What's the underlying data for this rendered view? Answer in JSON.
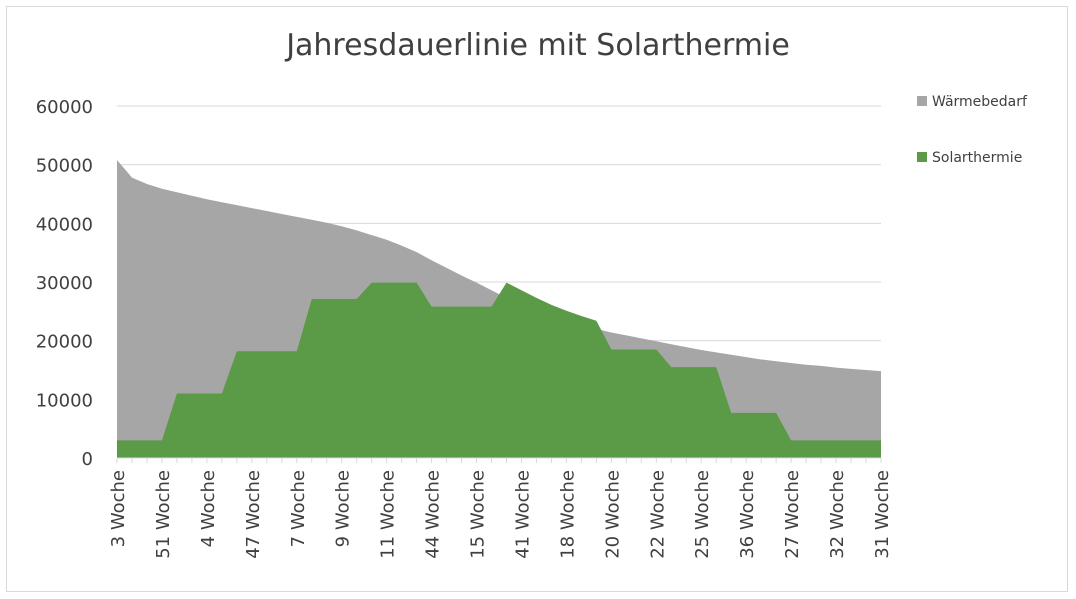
{
  "chart_data": {
    "type": "area",
    "title": "Jahresdauerlinie mit Solarthermie",
    "xlabel": "",
    "ylabel": "",
    "ylim": [
      0,
      60000
    ],
    "yticks": [
      0,
      10000,
      20000,
      30000,
      40000,
      50000,
      60000
    ],
    "grid": true,
    "legend_position": "right",
    "x_tick_labels": [
      "3 Woche",
      "51 Woche",
      "4 Woche",
      "47 Woche",
      "7 Woche",
      "9 Woche",
      "11 Woche",
      "44 Woche",
      "15 Woche",
      "41 Woche",
      "18 Woche",
      "20 Woche",
      "22 Woche",
      "25 Woche",
      "36 Woche",
      "27 Woche",
      "32 Woche",
      "31 Woche"
    ],
    "num_points": 52,
    "series": [
      {
        "name": "Wärmebedarf",
        "color": "#a6a6a6",
        "values": [
          50800,
          47800,
          46700,
          45900,
          45300,
          44700,
          44100,
          43600,
          43100,
          42600,
          42100,
          41600,
          41100,
          40600,
          40100,
          39500,
          38800,
          38000,
          37200,
          36200,
          35100,
          33700,
          32400,
          31100,
          29900,
          28600,
          27300,
          26100,
          25100,
          24200,
          23400,
          22600,
          22000,
          21400,
          20900,
          20400,
          19900,
          19400,
          18900,
          18400,
          18000,
          17600,
          17200,
          16800,
          16500,
          16200,
          15900,
          15700,
          15400,
          15200,
          15000,
          14800
        ]
      },
      {
        "name": "Solarthermie",
        "color": "#5b9a47",
        "values": [
          3000,
          3000,
          3000,
          3000,
          11000,
          11000,
          11000,
          11000,
          18200,
          18200,
          18200,
          18200,
          18200,
          27100,
          27100,
          27100,
          27100,
          29900,
          29900,
          29900,
          29900,
          25800,
          25800,
          25800,
          25800,
          25800,
          29900,
          28600,
          27300,
          26100,
          25100,
          24200,
          23400,
          18500,
          18500,
          18500,
          18500,
          15500,
          15500,
          15500,
          15500,
          7700,
          7700,
          7700,
          7700,
          3000,
          3000,
          3000,
          3000,
          3000,
          3000,
          3000
        ]
      }
    ]
  }
}
